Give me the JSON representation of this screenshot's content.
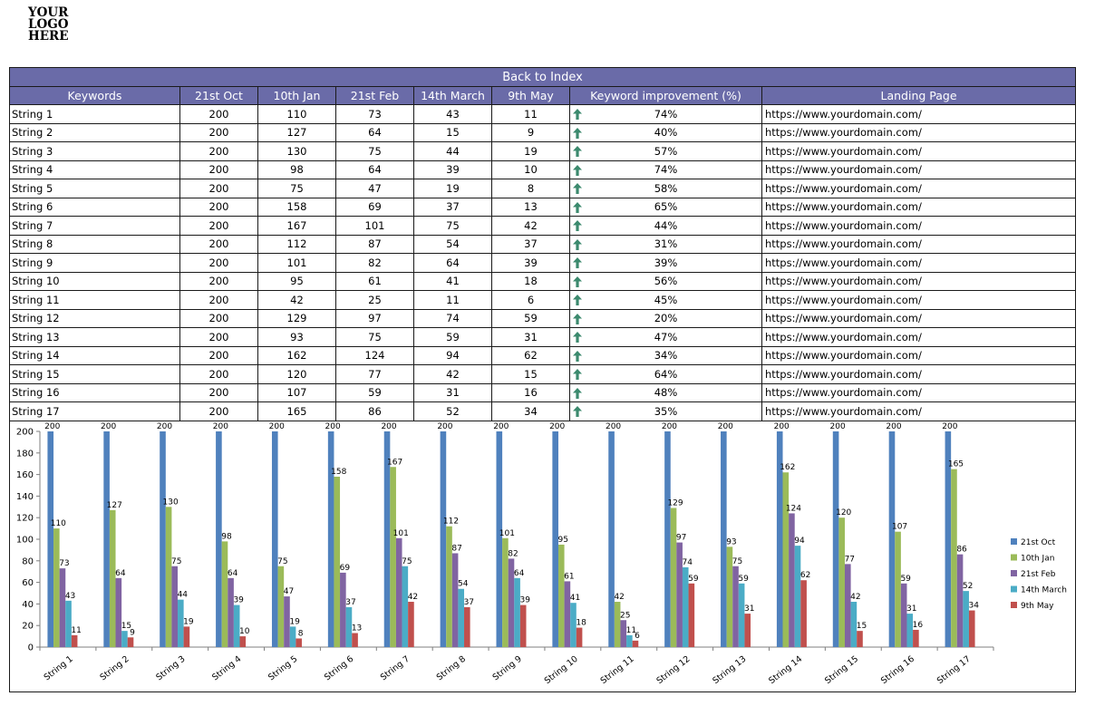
{
  "logo": {
    "line1": "YOUR",
    "line2": "LOGO",
    "line3": "HERE"
  },
  "back_to_index": "Back to Index",
  "headers": [
    "Keywords",
    "21st Oct",
    "10th Jan",
    "21st Feb",
    "14th March",
    "9th May",
    "Keyword improvement (%)",
    "Landing Page"
  ],
  "rows": [
    {
      "keyword": "String 1",
      "v": [
        200,
        110,
        73,
        43,
        11
      ],
      "improvement": "74%",
      "url": "https://www.yourdomain.com/"
    },
    {
      "keyword": "String 2",
      "v": [
        200,
        127,
        64,
        15,
        9
      ],
      "improvement": "40%",
      "url": "https://www.yourdomain.com/"
    },
    {
      "keyword": "String 3",
      "v": [
        200,
        130,
        75,
        44,
        19
      ],
      "improvement": "57%",
      "url": "https://www.yourdomain.com/"
    },
    {
      "keyword": "String 4",
      "v": [
        200,
        98,
        64,
        39,
        10
      ],
      "improvement": "74%",
      "url": "https://www.yourdomain.com/"
    },
    {
      "keyword": "String 5",
      "v": [
        200,
        75,
        47,
        19,
        8
      ],
      "improvement": "58%",
      "url": "https://www.yourdomain.com/"
    },
    {
      "keyword": "String 6",
      "v": [
        200,
        158,
        69,
        37,
        13
      ],
      "improvement": "65%",
      "url": "https://www.yourdomain.com/"
    },
    {
      "keyword": "String 7",
      "v": [
        200,
        167,
        101,
        75,
        42
      ],
      "improvement": "44%",
      "url": "https://www.yourdomain.com/"
    },
    {
      "keyword": "String 8",
      "v": [
        200,
        112,
        87,
        54,
        37
      ],
      "improvement": "31%",
      "url": "https://www.yourdomain.com/"
    },
    {
      "keyword": "String 9",
      "v": [
        200,
        101,
        82,
        64,
        39
      ],
      "improvement": "39%",
      "url": "https://www.yourdomain.com/"
    },
    {
      "keyword": "String 10",
      "v": [
        200,
        95,
        61,
        41,
        18
      ],
      "improvement": "56%",
      "url": "https://www.yourdomain.com/"
    },
    {
      "keyword": "String 11",
      "v": [
        200,
        42,
        25,
        11,
        6
      ],
      "improvement": "45%",
      "url": "https://www.yourdomain.com/"
    },
    {
      "keyword": "String 12",
      "v": [
        200,
        129,
        97,
        74,
        59
      ],
      "improvement": "20%",
      "url": "https://www.yourdomain.com/"
    },
    {
      "keyword": "String 13",
      "v": [
        200,
        93,
        75,
        59,
        31
      ],
      "improvement": "47%",
      "url": "https://www.yourdomain.com/"
    },
    {
      "keyword": "String 14",
      "v": [
        200,
        162,
        124,
        94,
        62
      ],
      "improvement": "34%",
      "url": "https://www.yourdomain.com/"
    },
    {
      "keyword": "String 15",
      "v": [
        200,
        120,
        77,
        42,
        15
      ],
      "improvement": "64%",
      "url": "https://www.yourdomain.com/"
    },
    {
      "keyword": "String 16",
      "v": [
        200,
        107,
        59,
        31,
        16
      ],
      "improvement": "48%",
      "url": "https://www.yourdomain.com/"
    },
    {
      "keyword": "String 17",
      "v": [
        200,
        165,
        86,
        52,
        34
      ],
      "improvement": "35%",
      "url": "https://www.yourdomain.com/"
    }
  ],
  "trend_icon": "up-arrow-icon",
  "colors": {
    "header_bg": "#6a6ba8",
    "arrow": "#3c8a6e"
  },
  "chart_data": {
    "type": "bar",
    "categories": [
      "String 1",
      "String 2",
      "String 3",
      "String 4",
      "String 5",
      "String 6",
      "String 7",
      "String 8",
      "String 9",
      "String 10",
      "String 11",
      "String 12",
      "String 13",
      "String 14",
      "String 15",
      "String 16",
      "String 17"
    ],
    "series": [
      {
        "name": "21st Oct",
        "color": "#4f81bd",
        "values": [
          200,
          200,
          200,
          200,
          200,
          200,
          200,
          200,
          200,
          200,
          200,
          200,
          200,
          200,
          200,
          200,
          200
        ]
      },
      {
        "name": "10th Jan",
        "color": "#9bbb59",
        "values": [
          110,
          127,
          130,
          98,
          75,
          158,
          167,
          112,
          101,
          95,
          42,
          129,
          93,
          162,
          120,
          107,
          165
        ]
      },
      {
        "name": "21st Feb",
        "color": "#8064a2",
        "values": [
          73,
          64,
          75,
          64,
          47,
          69,
          101,
          87,
          82,
          61,
          25,
          97,
          75,
          124,
          77,
          59,
          86
        ]
      },
      {
        "name": "14th March",
        "color": "#4bacc6",
        "values": [
          43,
          15,
          44,
          39,
          19,
          37,
          75,
          54,
          64,
          41,
          11,
          74,
          59,
          94,
          42,
          31,
          52
        ]
      },
      {
        "name": "9th May",
        "color": "#c0504d",
        "values": [
          11,
          9,
          19,
          10,
          8,
          13,
          42,
          37,
          39,
          18,
          6,
          59,
          31,
          62,
          15,
          16,
          34
        ]
      }
    ],
    "yticks": [
      0,
      20,
      40,
      60,
      80,
      100,
      120,
      140,
      160,
      180,
      200
    ],
    "ylim": [
      0,
      200
    ],
    "grid": false,
    "legend_position": "right",
    "data_labels": true
  }
}
